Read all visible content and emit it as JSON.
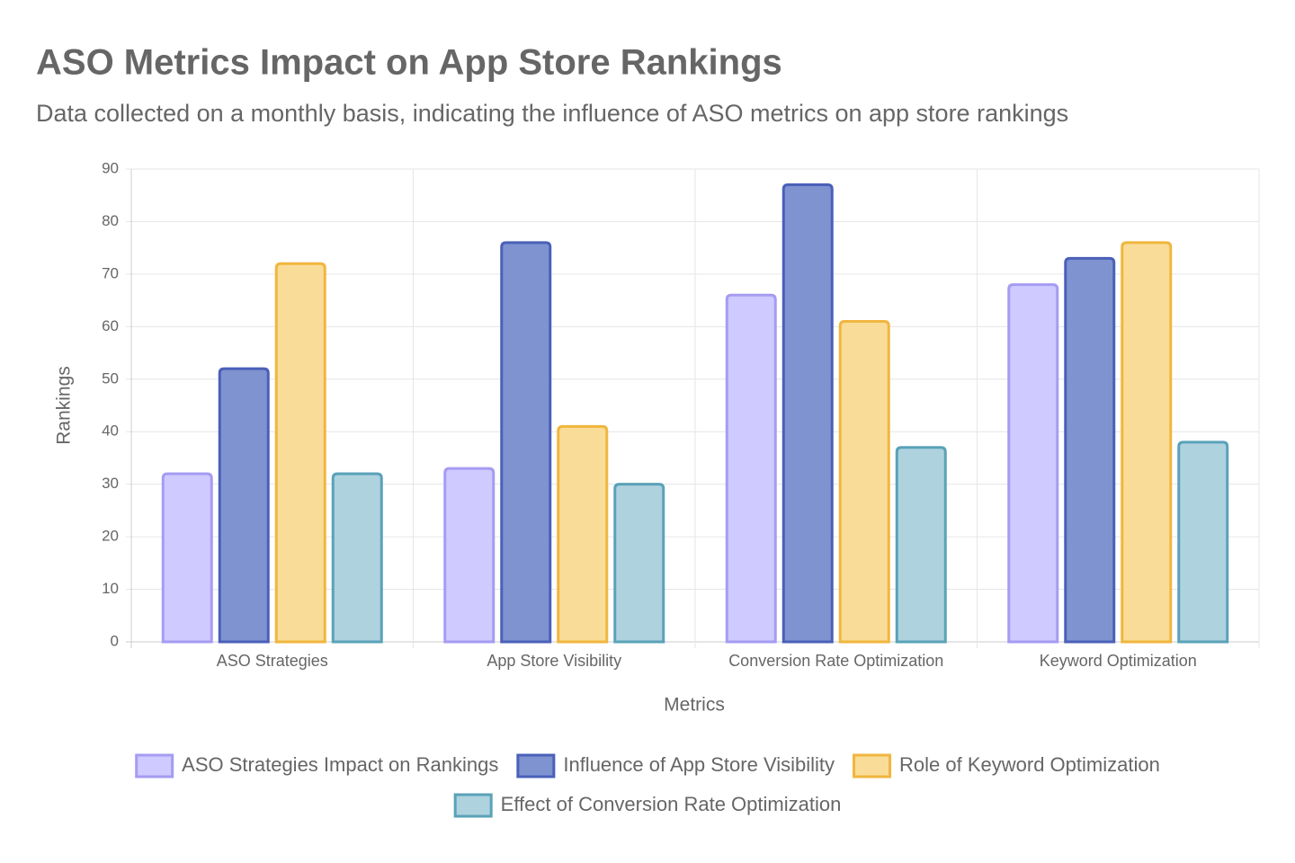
{
  "chart_data": {
    "type": "bar",
    "title": "ASO Metrics Impact on App Store Rankings",
    "subtitle": "Data collected on a monthly basis, indicating the influence of ASO metrics on app store rankings",
    "xlabel": "Metrics",
    "ylabel": "Rankings",
    "categories": [
      "ASO Strategies",
      "App Store Visibility",
      "Conversion Rate Optimization",
      "Keyword Optimization"
    ],
    "series": [
      {
        "name": "ASO Strategies Impact on Rankings",
        "color": "#cfcaff",
        "border": "#a59cf2",
        "values": [
          32,
          33,
          66,
          68
        ]
      },
      {
        "name": "Influence of App Store Visibility",
        "color": "#7f93d1",
        "border": "#4a60b8",
        "values": [
          52,
          76,
          87,
          73
        ]
      },
      {
        "name": "Role of Keyword Optimization",
        "color": "#f9dc98",
        "border": "#f0b63e",
        "values": [
          72,
          41,
          61,
          76
        ]
      },
      {
        "name": "Effect of Conversion Rate Optimization",
        "color": "#aed2de",
        "border": "#5aa2b8",
        "values": [
          32,
          30,
          37,
          38
        ]
      }
    ],
    "ylim": [
      0,
      90
    ],
    "yticks": [
      0,
      10,
      20,
      30,
      40,
      50,
      60,
      70,
      80,
      90
    ],
    "grid": true,
    "legend": "bottom"
  }
}
